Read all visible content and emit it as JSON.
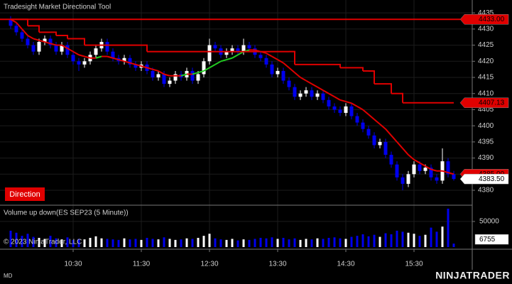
{
  "chart_data": [
    {
      "type": "candlestick",
      "title": "Tradesight Market Directional Tool",
      "button": "Direction",
      "up_color": "#ffffff",
      "down_color": "#0000ee",
      "categories": [
        null,
        null,
        null,
        null,
        null,
        null,
        null,
        null,
        null,
        null,
        null,
        "10:30",
        null,
        null,
        null,
        null,
        null,
        null,
        null,
        null,
        null,
        null,
        null,
        "11:30",
        null,
        null,
        null,
        null,
        null,
        null,
        null,
        null,
        null,
        null,
        null,
        "12:30",
        null,
        null,
        null,
        null,
        null,
        null,
        null,
        null,
        null,
        null,
        null,
        "13:30",
        null,
        null,
        null,
        null,
        null,
        null,
        null,
        null,
        null,
        null,
        null,
        "14:30",
        null,
        null,
        null,
        null,
        null,
        null,
        null,
        null,
        null,
        null,
        null,
        "15:30",
        null,
        null,
        null,
        null,
        null,
        null,
        null
      ],
      "open": [
        4433,
        4431,
        4429,
        4427,
        4425,
        4423,
        4426,
        4427,
        4425,
        4423,
        4425,
        4422,
        4420,
        4419,
        4420,
        4422,
        4424,
        4426,
        4423,
        4421,
        4420,
        4421,
        4419,
        4418,
        4419,
        4417,
        4415,
        4416,
        4413,
        4414,
        4416,
        4415,
        4417,
        4414,
        4416,
        4420,
        4425,
        4424,
        4422,
        4423,
        4424,
        4423,
        4425,
        4424,
        4422,
        4421,
        4419,
        4416,
        4417,
        4414,
        4412,
        4409,
        4410,
        4411,
        4409,
        4410,
        4408,
        4406,
        4405,
        4404,
        4406,
        4403,
        4401,
        4399,
        4397,
        4394,
        4395,
        4391,
        4388,
        4384,
        4382,
        4385,
        4388,
        4386,
        4387,
        4384,
        4383,
        4389,
        4385
      ],
      "high": [
        4434,
        4432,
        4430,
        4428,
        4426,
        4427,
        4428,
        4428,
        4426,
        4426,
        4426,
        4423,
        4421,
        4421,
        4423,
        4425,
        4427,
        4427,
        4424,
        4422,
        4422,
        4422,
        4420,
        4420,
        4420,
        4418,
        4417,
        4417,
        4415,
        4417,
        4417,
        4418,
        4418,
        4417,
        4421,
        4427,
        4426,
        4425,
        4424,
        4425,
        4425,
        4427,
        4426,
        4425,
        4423,
        4422,
        4420,
        4418,
        4418,
        4415,
        4413,
        4411,
        4412,
        4412,
        4411,
        4411,
        4409,
        4407,
        4406,
        4407,
        4407,
        4404,
        4402,
        4400,
        4398,
        4396,
        4396,
        4392,
        4389,
        4385,
        4386,
        4389,
        4389,
        4388,
        4388,
        4385,
        4393,
        4390,
        4386
      ],
      "low": [
        4430,
        4428,
        4426,
        4424,
        4422,
        4422,
        4425,
        4424,
        4422,
        4422,
        4421,
        4419,
        4417,
        4418,
        4419,
        4421,
        4423,
        4422,
        4420,
        4419,
        4419,
        4418,
        4417,
        4417,
        4416,
        4414,
        4414,
        4412,
        4412,
        4413,
        4414,
        4414,
        4413,
        4413,
        4415,
        4419,
        4423,
        4421,
        4421,
        4422,
        4422,
        4422,
        4423,
        4421,
        4420,
        4418,
        4415,
        4415,
        4413,
        4411,
        4408,
        4408,
        4409,
        4408,
        4408,
        4407,
        4405,
        4404,
        4403,
        4403,
        4402,
        4400,
        4398,
        4396,
        4393,
        4393,
        4390,
        4387,
        4383,
        4380,
        4381,
        4384,
        4385,
        4385,
        4383,
        4382,
        4382,
        4384,
        4383
      ],
      "close": [
        4431,
        4429,
        4427,
        4425,
        4423,
        4426,
        4427,
        4425,
        4423,
        4425,
        4422,
        4420,
        4419,
        4420,
        4422,
        4424,
        4426,
        4423,
        4421,
        4420,
        4421,
        4419,
        4418,
        4419,
        4417,
        4415,
        4416,
        4413,
        4414,
        4416,
        4415,
        4417,
        4414,
        4416,
        4420,
        4425,
        4424,
        4422,
        4423,
        4424,
        4423,
        4425,
        4424,
        4422,
        4421,
        4419,
        4416,
        4417,
        4414,
        4412,
        4409,
        4410,
        4411,
        4409,
        4410,
        4408,
        4406,
        4405,
        4404,
        4406,
        4403,
        4401,
        4399,
        4397,
        4394,
        4395,
        4391,
        4388,
        4384,
        4382,
        4385,
        4388,
        4386,
        4387,
        4384,
        4383,
        4389,
        4385,
        4383.5
      ],
      "lines": [
        {
          "color": "#e00000",
          "rising_color": "#22cc22",
          "values": [
            4433,
            4432,
            4430,
            4428,
            4427,
            4426.5,
            4426,
            4425.5,
            4425,
            4425,
            4424,
            4423,
            4422,
            4421.5,
            4421,
            4421,
            4421.5,
            4421.5,
            4421,
            4420.5,
            4420,
            4419.5,
            4419,
            4418.5,
            4418,
            4417.5,
            4417,
            4416,
            4415.5,
            4415.5,
            4415.5,
            4416,
            4416,
            4416.5,
            4417,
            4418,
            4419,
            4420,
            4420.5,
            4421,
            4422,
            4423,
            4423.5,
            4423.5,
            4423,
            4422.5,
            4421.5,
            4420.5,
            4419.5,
            4418,
            4416.5,
            4415,
            4414,
            4413,
            4412,
            4411,
            4410,
            4409,
            4408,
            4407.5,
            4407,
            4406,
            4405,
            4403.5,
            4402,
            4400.5,
            4399,
            4397,
            4395,
            4393,
            4391,
            4389.5,
            4388.5,
            4387.5,
            4386.5,
            4386,
            4386,
            4385.5,
            4385
          ]
        },
        {
          "color": "#e00000",
          "step": true,
          "values": [
            4433,
            4433,
            4433,
            4431,
            4431,
            4429,
            4429,
            4429,
            4428,
            4428,
            4427,
            4427,
            4427,
            4425,
            4425,
            4425,
            4425,
            4425,
            4425,
            4425,
            4425,
            4425,
            4425,
            4425,
            4423,
            4423,
            4423,
            4423,
            4423,
            4423,
            4423,
            4423,
            4423,
            4423,
            4423,
            4423,
            4423,
            4423,
            4423,
            4423,
            4423,
            4423,
            4423,
            4423,
            4423,
            4423,
            4423,
            4423,
            4423,
            4423,
            4419,
            4419,
            4419,
            4419,
            4419,
            4419,
            4419,
            4419,
            4418,
            4418,
            4418,
            4418,
            4417,
            4417,
            4413,
            4413,
            4413,
            4410,
            4410,
            4407.13,
            4407.13,
            4407.13,
            4407.13,
            4407.13,
            4407.13,
            4407.13,
            4407.13,
            4407.13,
            4407.13
          ]
        }
      ],
      "price_markers": [
        {
          "value": 4433,
          "label": "4433.00",
          "color": "#e00000",
          "line": true
        },
        {
          "value": 4407.13,
          "label": "4407.13",
          "color": "#e00000"
        },
        {
          "value": 4385,
          "label": "4385.00",
          "color": "#e00000"
        },
        {
          "value": 4383.5,
          "label": "4383.50",
          "color": "#ffffff"
        }
      ],
      "ylim": [
        4375.6,
        4437.9
      ],
      "yticks": [
        4380,
        4385,
        4390,
        4395,
        4400,
        4405,
        4410,
        4415,
        4420,
        4425,
        4430,
        4435
      ],
      "grid": true
    },
    {
      "type": "bar",
      "title": "Volume up down(ES SEP23 (5 Minute))",
      "copyright": "© 2023 NinjaTrader, LLC",
      "values": [
        32000,
        28000,
        22000,
        26000,
        20000,
        18000,
        16000,
        22000,
        17000,
        15000,
        19000,
        14000,
        16000,
        15000,
        18000,
        21000,
        17000,
        16000,
        15000,
        14000,
        17000,
        15000,
        16000,
        14000,
        18000,
        16000,
        15000,
        19000,
        16000,
        14000,
        15000,
        17000,
        16000,
        18000,
        22000,
        26000,
        17000,
        15000,
        14000,
        16000,
        13000,
        15000,
        14000,
        16000,
        18000,
        17000,
        19000,
        16000,
        18000,
        15000,
        17000,
        14000,
        16000,
        15000,
        17000,
        16000,
        18000,
        19000,
        17000,
        16000,
        20000,
        22000,
        25000,
        21000,
        24000,
        20000,
        27000,
        25000,
        32000,
        30000,
        28000,
        26000,
        22000,
        24000,
        38000,
        30000,
        40000,
        75000,
        6755
      ],
      "ylim": [
        0,
        79000
      ],
      "yticks": [
        50000
      ],
      "grid": true
    }
  ],
  "footer": {
    "mode": "MD",
    "logo": "NINJATRADER"
  }
}
